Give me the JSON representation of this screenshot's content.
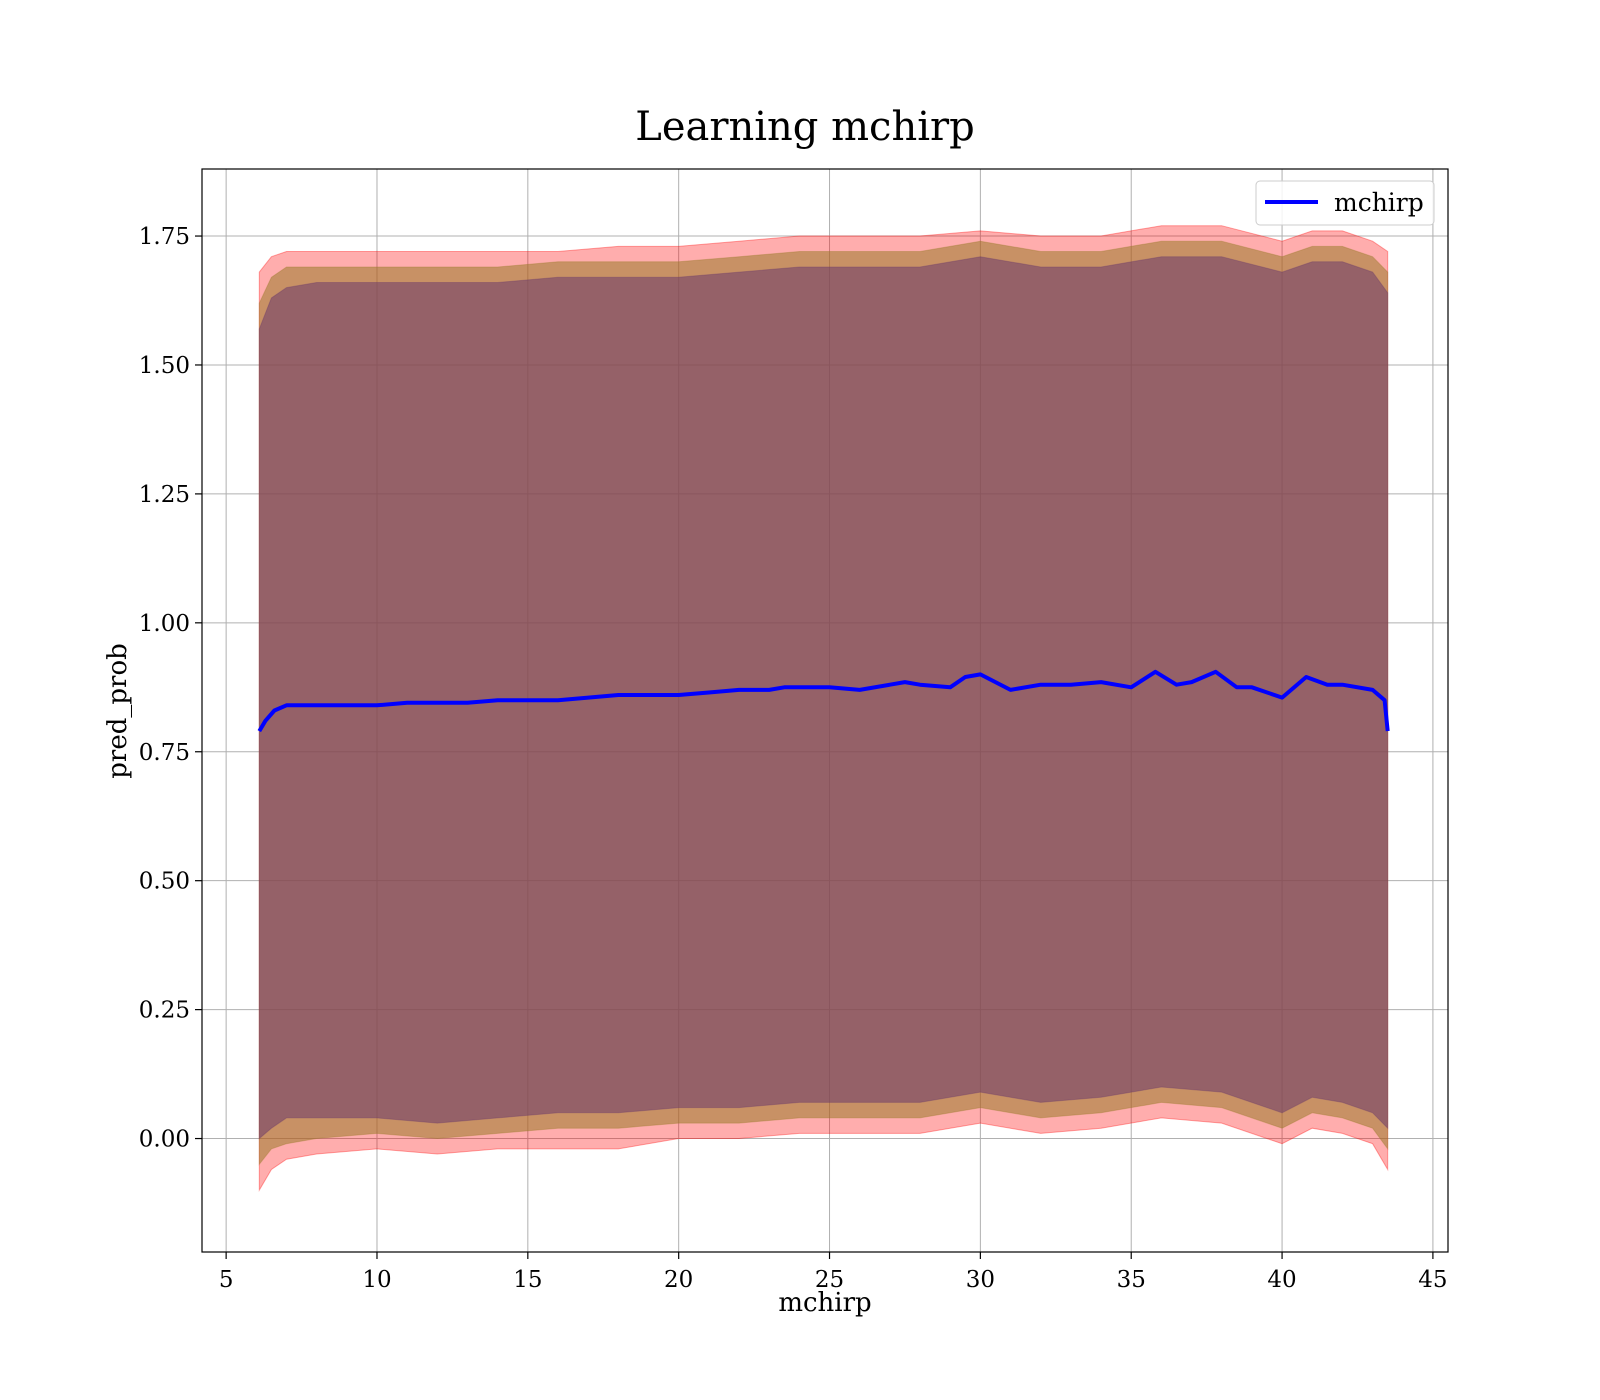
{
  "chart_data": {
    "type": "line",
    "title": "Learning mchirp",
    "xlabel": "mchirp",
    "ylabel": "pred_prob",
    "xlim": [
      4.2,
      45.5
    ],
    "ylim": [
      -0.22,
      1.88
    ],
    "xticks": [
      5,
      10,
      15,
      20,
      25,
      30,
      35,
      40,
      45
    ],
    "yticks": [
      0.0,
      0.25,
      0.5,
      0.75,
      1.0,
      1.25,
      1.5,
      1.75
    ],
    "ytick_labels": [
      "0.00",
      "0.25",
      "0.50",
      "0.75",
      "1.00",
      "1.25",
      "1.50",
      "1.75"
    ],
    "grid": true,
    "legend": {
      "placement": "top-right",
      "entries": [
        "mchirp"
      ]
    },
    "colors": {
      "line": "#0000ff",
      "band_outer": "#ff0000",
      "band_mid": "#9a7a2a",
      "band_inner": "#6b3a6b"
    },
    "series": [
      {
        "name": "mchirp",
        "kind": "line",
        "x": [
          6.1,
          6.3,
          6.6,
          7.0,
          7.5,
          8.0,
          9.0,
          10.0,
          11.0,
          12.0,
          13.0,
          14.0,
          15.0,
          16.0,
          17.0,
          18.0,
          19.0,
          20.0,
          21.0,
          22.0,
          23.0,
          23.5,
          24.0,
          25.0,
          26.0,
          27.0,
          27.5,
          28.0,
          29.0,
          29.5,
          30.0,
          31.0,
          32.0,
          33.0,
          34.0,
          35.0,
          35.8,
          36.5,
          37.0,
          37.8,
          38.5,
          39.0,
          40.0,
          40.8,
          41.5,
          42.0,
          43.0,
          43.4,
          43.5
        ],
        "y": [
          0.79,
          0.81,
          0.83,
          0.84,
          0.84,
          0.84,
          0.84,
          0.84,
          0.845,
          0.845,
          0.845,
          0.85,
          0.85,
          0.85,
          0.855,
          0.86,
          0.86,
          0.86,
          0.865,
          0.87,
          0.87,
          0.875,
          0.875,
          0.875,
          0.87,
          0.88,
          0.885,
          0.88,
          0.875,
          0.895,
          0.9,
          0.87,
          0.88,
          0.88,
          0.885,
          0.875,
          0.905,
          0.88,
          0.885,
          0.905,
          0.875,
          0.875,
          0.855,
          0.895,
          0.88,
          0.88,
          0.87,
          0.85,
          0.79
        ]
      },
      {
        "name": "",
        "kind": "band",
        "x": [
          6.1,
          6.5,
          7.0,
          8.0,
          10.0,
          12.0,
          14.0,
          16.0,
          18.0,
          20.0,
          22.0,
          24.0,
          26.0,
          28.0,
          30.0,
          32.0,
          34.0,
          36.0,
          38.0,
          40.0,
          41.0,
          42.0,
          43.0,
          43.5
        ],
        "upper": [
          1.68,
          1.71,
          1.72,
          1.72,
          1.72,
          1.72,
          1.72,
          1.72,
          1.73,
          1.73,
          1.74,
          1.75,
          1.75,
          1.75,
          1.76,
          1.75,
          1.75,
          1.77,
          1.77,
          1.74,
          1.76,
          1.76,
          1.74,
          1.72
        ],
        "lower": [
          -0.1,
          -0.06,
          -0.04,
          -0.03,
          -0.02,
          -0.03,
          -0.02,
          -0.02,
          -0.02,
          0.0,
          0.0,
          0.01,
          0.01,
          0.01,
          0.03,
          0.01,
          0.02,
          0.04,
          0.03,
          -0.01,
          0.02,
          0.01,
          -0.01,
          -0.06
        ]
      },
      {
        "name": "",
        "kind": "band",
        "x": [
          6.1,
          6.5,
          7.0,
          8.0,
          10.0,
          12.0,
          14.0,
          16.0,
          18.0,
          20.0,
          22.0,
          24.0,
          26.0,
          28.0,
          30.0,
          32.0,
          34.0,
          36.0,
          38.0,
          40.0,
          41.0,
          42.0,
          43.0,
          43.5
        ],
        "upper": [
          1.62,
          1.67,
          1.69,
          1.69,
          1.69,
          1.69,
          1.69,
          1.7,
          1.7,
          1.7,
          1.71,
          1.72,
          1.72,
          1.72,
          1.74,
          1.72,
          1.72,
          1.74,
          1.74,
          1.71,
          1.73,
          1.73,
          1.71,
          1.68
        ],
        "lower": [
          -0.05,
          -0.02,
          -0.01,
          0.0,
          0.01,
          0.0,
          0.01,
          0.02,
          0.02,
          0.03,
          0.03,
          0.04,
          0.04,
          0.04,
          0.06,
          0.04,
          0.05,
          0.07,
          0.06,
          0.02,
          0.05,
          0.04,
          0.02,
          -0.02
        ]
      },
      {
        "name": "",
        "kind": "band",
        "x": [
          6.1,
          6.5,
          7.0,
          8.0,
          10.0,
          12.0,
          14.0,
          16.0,
          18.0,
          20.0,
          22.0,
          24.0,
          26.0,
          28.0,
          30.0,
          32.0,
          34.0,
          36.0,
          38.0,
          40.0,
          41.0,
          42.0,
          43.0,
          43.5
        ],
        "upper": [
          1.57,
          1.63,
          1.65,
          1.66,
          1.66,
          1.66,
          1.66,
          1.67,
          1.67,
          1.67,
          1.68,
          1.69,
          1.69,
          1.69,
          1.71,
          1.69,
          1.69,
          1.71,
          1.71,
          1.68,
          1.7,
          1.7,
          1.68,
          1.64
        ],
        "lower": [
          0.0,
          0.02,
          0.04,
          0.04,
          0.04,
          0.03,
          0.04,
          0.05,
          0.05,
          0.06,
          0.06,
          0.07,
          0.07,
          0.07,
          0.09,
          0.07,
          0.08,
          0.1,
          0.09,
          0.05,
          0.08,
          0.07,
          0.05,
          0.02
        ]
      }
    ]
  }
}
